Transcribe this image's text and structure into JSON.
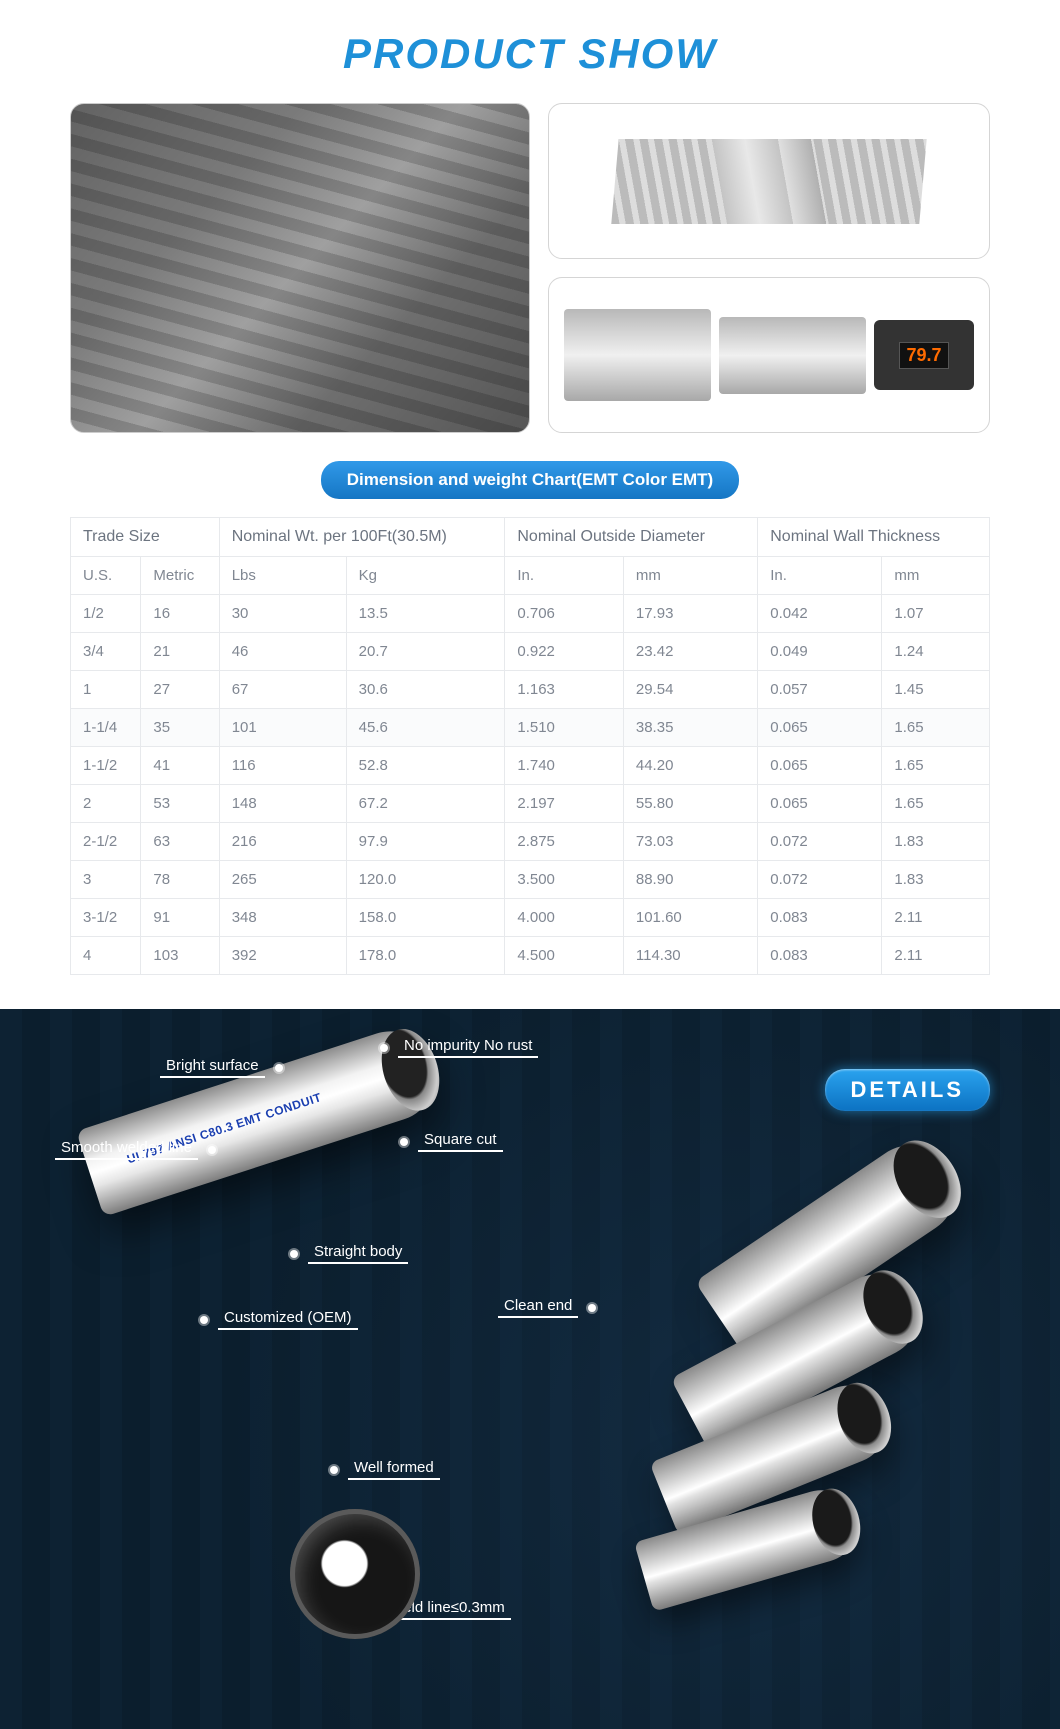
{
  "title": "PRODUCT SHOW",
  "chart_pill": "Dimension and weight Chart(EMT Color EMT)",
  "table": {
    "group_headers": [
      "Trade Size",
      "Nominal Wt. per 100Ft(30.5M)",
      "Nominal Outside Diameter",
      "Nominal Wall Thickness"
    ],
    "group_spans": [
      2,
      2,
      2,
      2
    ],
    "sub_headers": [
      "U.S.",
      "Metric",
      "Lbs",
      "Kg",
      "In.",
      "mm",
      "In.",
      "mm"
    ],
    "rows": [
      [
        "1/2",
        "16",
        "30",
        "13.5",
        "0.706",
        "17.93",
        "0.042",
        "1.07"
      ],
      [
        "3/4",
        "21",
        "46",
        "20.7",
        "0.922",
        "23.42",
        "0.049",
        "1.24"
      ],
      [
        "1",
        "27",
        "67",
        "30.6",
        "1.163",
        "29.54",
        "0.057",
        "1.45"
      ],
      [
        "1-1/4",
        "35",
        "101",
        "45.6",
        "1.510",
        "38.35",
        "0.065",
        "1.65"
      ],
      [
        "1-1/2",
        "41",
        "116",
        "52.8",
        "1.740",
        "44.20",
        "0.065",
        "1.65"
      ],
      [
        "2",
        "53",
        "148",
        "67.2",
        "2.197",
        "55.80",
        "0.065",
        "1.65"
      ],
      [
        "2-1/2",
        "63",
        "216",
        "97.9",
        "2.875",
        "73.03",
        "0.072",
        "1.83"
      ],
      [
        "3",
        "78",
        "265",
        "120.0",
        "3.500",
        "88.90",
        "0.072",
        "1.83"
      ],
      [
        "3-1/2",
        "91",
        "348",
        "158.0",
        "4.000",
        "101.60",
        "0.083",
        "2.11"
      ],
      [
        "4",
        "103",
        "392",
        "178.0",
        "4.500",
        "114.30",
        "0.083",
        "2.11"
      ]
    ],
    "border_color": "#e7e9ec",
    "text_color": "#808792"
  },
  "details": {
    "badge": "DETAILS",
    "conduit_print": "UL797 ANSI C80.3 EMT CONDUIT",
    "callouts": {
      "bright_surface": "Bright surface",
      "no_impurity": "No impurity No rust",
      "smooth_weld": "Smooth welded line",
      "square_cut": "Square cut",
      "straight_body": "Straight body",
      "customized": "Customized (OEM)",
      "clean_end": "Clean end",
      "well_formed": "Well formed",
      "inner_weld": "Inner weld line≤0.3mm"
    },
    "panel_bg_base": "#0a1b28",
    "badge_gradient": [
      "#2aa3ef",
      "#0c72c2"
    ]
  },
  "colors": {
    "title": "#1e90d8",
    "pill_gradient": [
      "#3199e8",
      "#1576c4"
    ]
  }
}
